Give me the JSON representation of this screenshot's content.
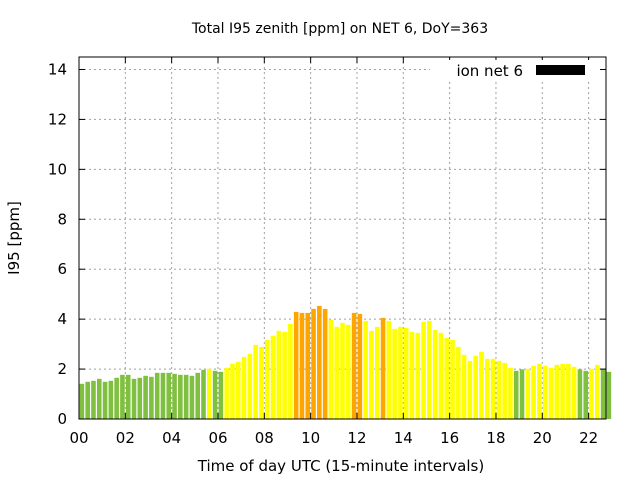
{
  "chart_data": {
    "type": "bar",
    "title": "Total I95 zenith [ppm] on NET 6, DoY=363",
    "xlabel": "Time of day UTC (15-minute intervals)",
    "ylabel": "I95 [ppm]",
    "xlim": [
      0,
      22.75
    ],
    "ylim": [
      0,
      14.5
    ],
    "grid": true,
    "legend": {
      "label": "ion net 6",
      "placement": "top-right"
    },
    "x_tick_values": [
      0,
      2,
      4,
      6,
      8,
      10,
      12,
      14,
      16,
      18,
      20,
      22
    ],
    "x_tick_labels": [
      "00",
      "02",
      "04",
      "06",
      "08",
      "10",
      "12",
      "14",
      "16",
      "18",
      "20",
      "22"
    ],
    "y_ticks": [
      0,
      2,
      4,
      6,
      8,
      10,
      12,
      14
    ],
    "y_tick_labels": [
      "0",
      "2",
      "4",
      "6",
      "8",
      "10",
      "12",
      "14"
    ],
    "interval_hours": 0.25,
    "colors": {
      "low": "#80c040",
      "mid": "#ffff00",
      "high": "#ffa500"
    },
    "thresholds": {
      "low_below": 2.0,
      "high_at_or_above": 4.0
    },
    "values": [
      1.41,
      1.49,
      1.53,
      1.61,
      1.49,
      1.53,
      1.65,
      1.77,
      1.77,
      1.61,
      1.65,
      1.73,
      1.69,
      1.85,
      1.85,
      1.85,
      1.81,
      1.77,
      1.77,
      1.73,
      1.85,
      1.97,
      2.01,
      1.93,
      1.89,
      2.05,
      2.21,
      2.29,
      2.49,
      2.61,
      2.97,
      2.89,
      3.17,
      3.33,
      3.53,
      3.49,
      3.81,
      4.29,
      4.25,
      4.25,
      4.41,
      4.53,
      4.41,
      3.97,
      3.69,
      3.85,
      3.77,
      4.25,
      4.21,
      3.93,
      3.53,
      3.69,
      4.05,
      3.93,
      3.61,
      3.69,
      3.65,
      3.49,
      3.45,
      3.89,
      3.93,
      3.57,
      3.45,
      3.25,
      3.17,
      2.89,
      2.57,
      2.33,
      2.53,
      2.69,
      2.41,
      2.41,
      2.33,
      2.25,
      2.05,
      1.93,
      1.99,
      2.01,
      2.13,
      2.21,
      2.13,
      2.05,
      2.17,
      2.21,
      2.21,
      2.09,
      1.99,
      1.93,
      2.01,
      2.17,
      1.99,
      1.89
    ]
  }
}
